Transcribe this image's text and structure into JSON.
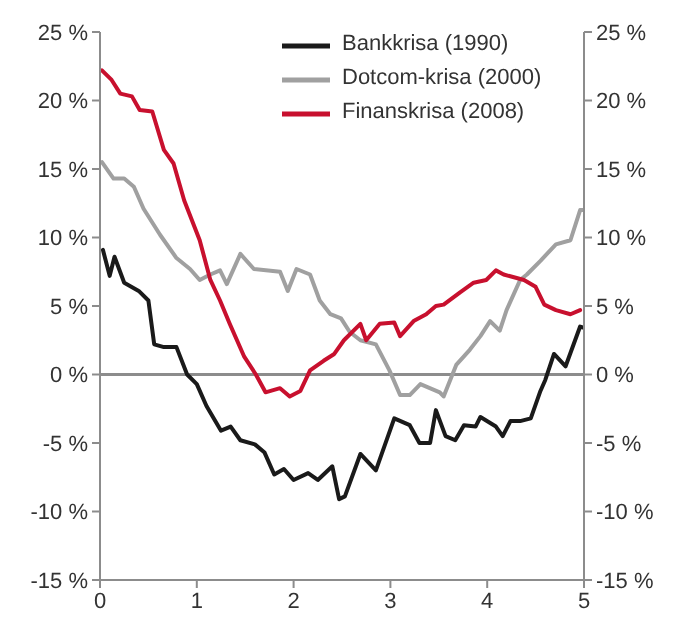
{
  "chart_data": {
    "type": "line",
    "xlim": [
      0,
      5
    ],
    "xticks": [
      0,
      1,
      2,
      3,
      4,
      5
    ],
    "ylim": [
      -15,
      25
    ],
    "yticks": [
      {
        "value": -15,
        "label": "-15 %"
      },
      {
        "value": -10,
        "label": "-10 %"
      },
      {
        "value": -5,
        "label": "-5 %"
      },
      {
        "value": 0,
        "label": "0 %"
      },
      {
        "value": 5,
        "label": "5 %"
      },
      {
        "value": 10,
        "label": "10 %"
      },
      {
        "value": 15,
        "label": "15 %"
      },
      {
        "value": 20,
        "label": "20 %"
      },
      {
        "value": 25,
        "label": "25 %"
      }
    ],
    "y2lim": [
      -15,
      25
    ],
    "y2ticks": [
      {
        "value": -15,
        "label": "-15 %"
      },
      {
        "value": -10,
        "label": "-10 %"
      },
      {
        "value": -5,
        "label": "-5 %"
      },
      {
        "value": 0,
        "label": "0 %"
      },
      {
        "value": 5,
        "label": "5 %"
      },
      {
        "value": 10,
        "label": "10 %"
      },
      {
        "value": 15,
        "label": "15 %"
      },
      {
        "value": 20,
        "label": "20 %"
      },
      {
        "value": 25,
        "label": "25 %"
      }
    ],
    "grid": false,
    "legend": "top right",
    "marker": "none",
    "line_style": "solid",
    "ref_lines": [
      {
        "axis": "y",
        "value": 0,
        "color": "#8c8c8c"
      }
    ],
    "series": [
      {
        "name": "Bankkrisa (1990)",
        "color": "#1a1a1a",
        "x": [
          0.03,
          0.1,
          0.15,
          0.25,
          0.4,
          0.5,
          0.56,
          0.66,
          0.79,
          0.9,
          1.0,
          1.1,
          1.25,
          1.35,
          1.45,
          1.6,
          1.7,
          1.8,
          1.9,
          2.0,
          2.15,
          2.25,
          2.4,
          2.47,
          2.53,
          2.69,
          2.85,
          3.04,
          3.2,
          3.3,
          3.41,
          3.47,
          3.57,
          3.67,
          3.76,
          3.88,
          3.93,
          4.09,
          4.16,
          4.24,
          4.34,
          4.45,
          4.55,
          4.6,
          4.69,
          4.81,
          4.96,
          5.0
        ],
        "values": [
          9.1,
          7.2,
          8.6,
          6.7,
          6.1,
          5.4,
          2.2,
          2.0,
          2.0,
          0,
          -0.7,
          -2.3,
          -4.1,
          -3.8,
          -4.8,
          -5.1,
          -5.7,
          -7.3,
          -6.9,
          -7.7,
          -7.2,
          -7.7,
          -6.7,
          -9.1,
          -8.9,
          -5.8,
          -7.0,
          -3.2,
          -3.7,
          -5.0,
          -5.0,
          -2.6,
          -4.5,
          -4.8,
          -3.7,
          -3.8,
          -3.1,
          -3.8,
          -4.5,
          -3.4,
          -3.4,
          -3.2,
          -1.2,
          -0.4,
          1.5,
          0.6,
          3.5,
          3.4
        ]
      },
      {
        "name": "Dotcom-krisa (2000)",
        "color": "#a0a0a0",
        "x": [
          0.02,
          0.14,
          0.25,
          0.35,
          0.45,
          0.62,
          0.79,
          0.93,
          1.03,
          1.14,
          1.24,
          1.31,
          1.45,
          1.59,
          1.86,
          1.94,
          2.03,
          2.17,
          2.27,
          2.38,
          2.49,
          2.58,
          2.69,
          2.85,
          2.99,
          3.1,
          3.2,
          3.31,
          3.51,
          3.55,
          3.68,
          3.82,
          3.93,
          4.03,
          4.13,
          4.2,
          4.34,
          4.41,
          4.55,
          4.71,
          4.86,
          4.96,
          5.0
        ],
        "values": [
          15.5,
          14.3,
          14.3,
          13.7,
          12.1,
          10.2,
          8.5,
          7.7,
          6.9,
          7.3,
          7.6,
          6.6,
          8.8,
          7.7,
          7.5,
          6.1,
          7.7,
          7.3,
          5.4,
          4.4,
          4.1,
          3.1,
          2.5,
          2.2,
          0.3,
          -1.5,
          -1.5,
          -0.7,
          -1.3,
          -1.6,
          0.7,
          1.8,
          2.8,
          3.9,
          3.2,
          4.7,
          6.9,
          7.3,
          8.3,
          9.5,
          9.8,
          12.0,
          12.0
        ]
      },
      {
        "name": "Finanskrisa (2008)",
        "color": "#c8102e",
        "x": [
          0.02,
          0.12,
          0.21,
          0.33,
          0.41,
          0.54,
          0.66,
          0.76,
          0.87,
          1.03,
          1.14,
          1.24,
          1.34,
          1.49,
          1.61,
          1.71,
          1.86,
          1.96,
          2.07,
          2.17,
          2.31,
          2.42,
          2.52,
          2.69,
          2.75,
          2.89,
          3.04,
          3.1,
          3.24,
          3.37,
          3.47,
          3.55,
          3.72,
          3.86,
          3.99,
          4.09,
          4.17,
          4.38,
          4.5,
          4.59,
          4.71,
          4.86,
          4.96
        ],
        "values": [
          22.2,
          21.5,
          20.5,
          20.3,
          19.3,
          19.2,
          16.4,
          15.4,
          12.7,
          9.8,
          6.9,
          5.4,
          3.7,
          1.3,
          0,
          -1.3,
          -1.0,
          -1.6,
          -1.2,
          0.3,
          1.0,
          1.5,
          2.5,
          3.7,
          2.5,
          3.7,
          3.8,
          2.8,
          3.9,
          4.4,
          5.0,
          5.1,
          6.0,
          6.7,
          6.9,
          7.6,
          7.3,
          6.9,
          6.4,
          5.1,
          4.7,
          4.4,
          4.7
        ]
      }
    ]
  }
}
